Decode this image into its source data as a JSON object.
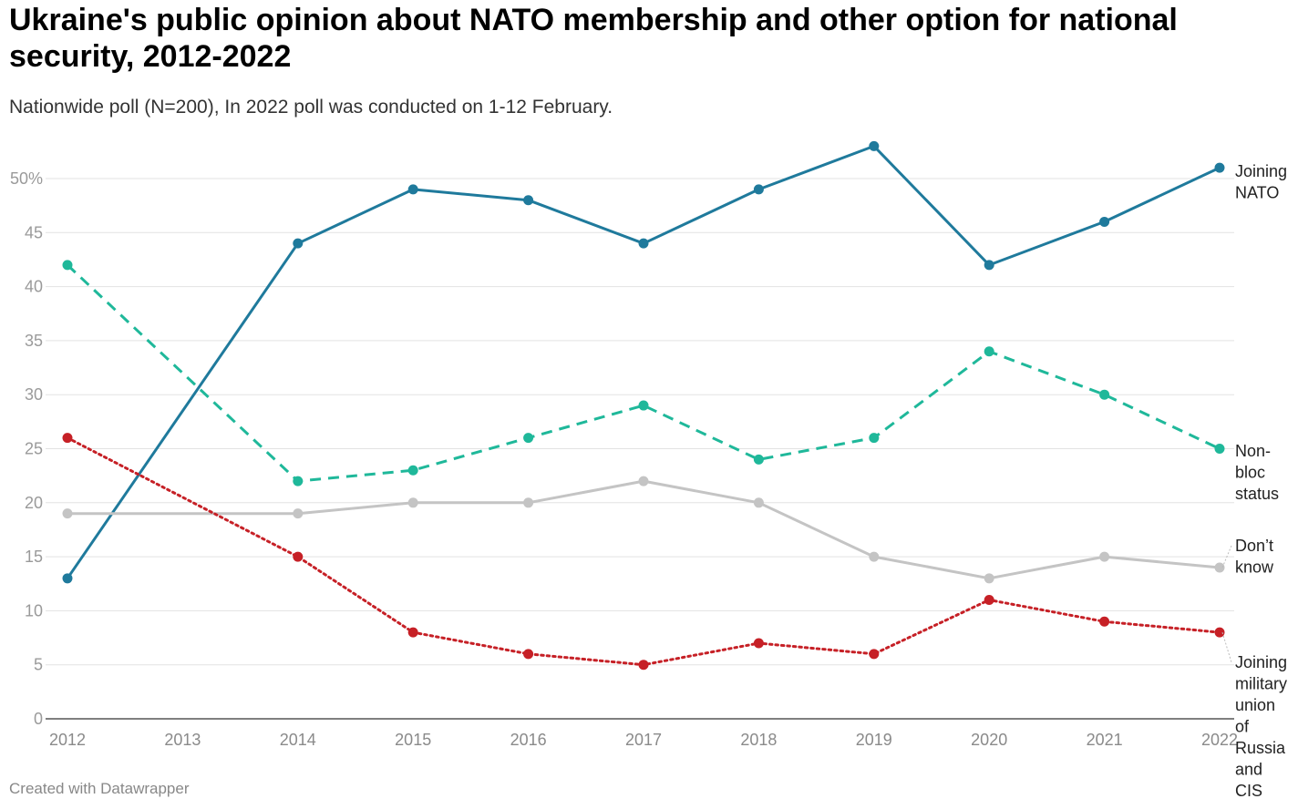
{
  "header": {
    "title": "Ukraine's public opinion about NATO membership and other option for national security, 2012-2022",
    "subtitle": "Nationwide poll (N=200), In 2022 poll was conducted on 1-12 February."
  },
  "footer": {
    "credit": "Created with Datawrapper"
  },
  "chart_data": {
    "type": "line",
    "title": "Ukraine's public opinion about NATO membership and other option for national security, 2012-2022",
    "subtitle": "Nationwide poll (N=200), In 2022 poll was conducted on 1-12 February.",
    "xlabel": "",
    "ylabel": "",
    "x": [
      2012,
      2013,
      2014,
      2015,
      2016,
      2017,
      2018,
      2019,
      2020,
      2021,
      2022
    ],
    "ylim": [
      0,
      50
    ],
    "y_ticks": [
      0,
      5,
      10,
      15,
      20,
      25,
      30,
      35,
      40,
      45,
      50
    ],
    "y_tick_labels": [
      "0",
      "5",
      "10",
      "15",
      "20",
      "25",
      "30",
      "35",
      "40",
      "45",
      "50%"
    ],
    "grid": true,
    "legend": "direct labels at right end of lines",
    "series": [
      {
        "name": "Joining NATO",
        "label_lines": [
          "Joining",
          "NATO"
        ],
        "color": "#1f7a9c",
        "style": "solid",
        "x": [
          2012,
          2014,
          2015,
          2016,
          2017,
          2018,
          2019,
          2020,
          2021,
          2022
        ],
        "values": [
          13,
          44,
          49,
          48,
          44,
          49,
          53,
          42,
          46,
          51
        ]
      },
      {
        "name": "Non-bloc status",
        "label_lines": [
          "Non-",
          "bloc",
          "status"
        ],
        "color": "#1fb89a",
        "style": "dashed",
        "x": [
          2012,
          2014,
          2015,
          2016,
          2017,
          2018,
          2019,
          2020,
          2021,
          2022
        ],
        "values": [
          42,
          22,
          23,
          26,
          29,
          24,
          26,
          34,
          30,
          25
        ]
      },
      {
        "name": "Don't know",
        "label_lines": [
          "Don’t",
          "know"
        ],
        "color": "#c4c4c4",
        "style": "solid",
        "x": [
          2012,
          2014,
          2015,
          2016,
          2017,
          2018,
          2019,
          2020,
          2021,
          2022
        ],
        "values": [
          19,
          19,
          20,
          20,
          22,
          20,
          15,
          13,
          15,
          14
        ]
      },
      {
        "name": "Joining military union of Russia and CIS",
        "label_lines": [
          "Joining",
          "military",
          "union",
          "of",
          "Russia",
          "and",
          "CIS"
        ],
        "color": "#c62026",
        "style": "dotted",
        "x": [
          2012,
          2014,
          2015,
          2016,
          2017,
          2018,
          2019,
          2020,
          2021,
          2022
        ],
        "values": [
          26,
          15,
          8,
          6,
          5,
          7,
          6,
          11,
          9,
          8
        ]
      }
    ]
  }
}
